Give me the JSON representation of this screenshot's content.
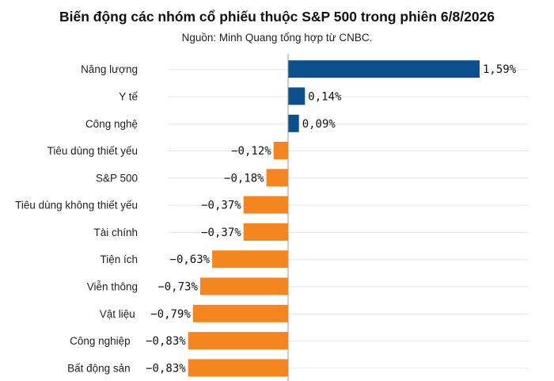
{
  "chart_data": {
    "type": "bar",
    "orientation": "horizontal",
    "title": "Biến động các nhóm cổ phiếu thuộc S&P 500 trong phiên 6/8/2026",
    "subtitle": "Nguồn: Minh Quang tổng hợp từ CNBC.",
    "categories": [
      "Năng lượng",
      "Y tế",
      "Công nghệ",
      "Tiêu dùng thiết yếu",
      "S&P 500",
      "Tiêu dùng không thiết yếu",
      "Tài chính",
      "Tiện ích",
      "Viễn thông",
      "Vật liệu",
      "Công nghiệp",
      "Bất động sản"
    ],
    "values": [
      1.59,
      0.14,
      0.09,
      -0.12,
      -0.18,
      -0.37,
      -0.37,
      -0.63,
      -0.73,
      -0.79,
      -0.83,
      -0.83
    ],
    "value_labels": [
      "1,59%",
      "0,14%",
      "0,09%",
      "−0,12%",
      "−0,18%",
      "−0,37%",
      "−0,37%",
      "−0,63%",
      "−0,73%",
      "−0,79%",
      "−0,83%",
      "−0,83%"
    ],
    "xlim": [
      -0.83,
      1.59
    ],
    "grid": true,
    "legend": "none",
    "colors": {
      "positive": "#0b4f8c",
      "negative": "#f5861f"
    }
  }
}
